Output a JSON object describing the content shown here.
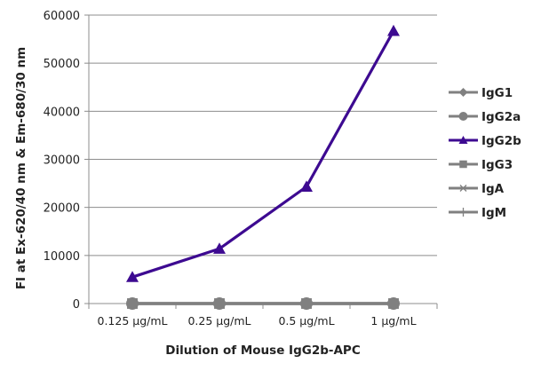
{
  "chart_data": {
    "type": "line",
    "title": "",
    "xlabel": "Dilution of Mouse IgG2b-APC",
    "ylabel": "FI at Ex-620/40 nm & Em-680/30 nm",
    "ylim": [
      0,
      60000
    ],
    "yticks": [
      "0",
      "10000",
      "20000",
      "30000",
      "40000",
      "50000",
      "60000"
    ],
    "categories": [
      "0.125 µg/mL",
      "0.25 µg/mL",
      "0.5 µg/mL",
      "1 µg/mL"
    ],
    "grid": true,
    "legend_position": "right",
    "series": [
      {
        "name": "IgG1",
        "values": [
          0,
          0,
          0,
          0
        ],
        "color": "#808080",
        "marker": "diamond"
      },
      {
        "name": "IgG2a",
        "values": [
          0,
          0,
          0,
          0
        ],
        "color": "#808080",
        "marker": "circle"
      },
      {
        "name": "IgG2b",
        "values": [
          5500,
          11400,
          24300,
          56700
        ],
        "color": "#3d0a91",
        "marker": "triangle"
      },
      {
        "name": "IgG3",
        "values": [
          0,
          0,
          0,
          0
        ],
        "color": "#808080",
        "marker": "square"
      },
      {
        "name": "IgA",
        "values": [
          0,
          0,
          0,
          0
        ],
        "color": "#808080",
        "marker": "star"
      },
      {
        "name": "IgM",
        "values": [
          0,
          0,
          0,
          0
        ],
        "color": "#808080",
        "marker": "plus"
      }
    ]
  }
}
